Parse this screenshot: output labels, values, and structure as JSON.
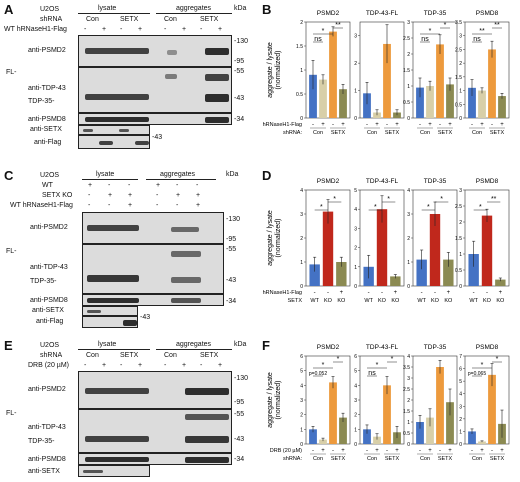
{
  "figure": {
    "panels": {
      "A": {
        "letter": "A",
        "cell_line": "U2OS",
        "group_lysate": "lysate",
        "group_aggregates": "aggregates",
        "kda": "kDa",
        "shrna_label": "shRNA",
        "shrna_values": [
          "Con",
          "SETX",
          "Con",
          "SETX"
        ],
        "treatment_label": "WT hRNaseH1-Flag",
        "treatment_signs": [
          "-",
          "+",
          "-",
          "+",
          "-",
          "+",
          "-",
          "+"
        ],
        "blot_labels": [
          "anti-PSMD2",
          "FL-",
          "anti-TDP-43",
          "TDP-35-",
          "anti-PSMD8",
          "anti-SETX",
          "anti-Flag"
        ],
        "markers": [
          "-130",
          "-95",
          "-55",
          "-43",
          "-34",
          "-43"
        ]
      },
      "C": {
        "letter": "C",
        "cell_line": "U2OS",
        "group_lysate": "lysate",
        "group_aggregates": "aggregates",
        "kda": "kDa",
        "row_wt": "WT",
        "row_setx": "SETX KO",
        "row_flag": "WT hRNaseH1-Flag",
        "wt_signs": [
          "+",
          "-",
          "-",
          "+",
          "-",
          "-"
        ],
        "setx_signs": [
          "-",
          "+",
          "+",
          "-",
          "+",
          "+"
        ],
        "flag_signs": [
          "-",
          "-",
          "+",
          "-",
          "-",
          "+"
        ],
        "blot_labels": [
          "anti-PSMD2",
          "FL-",
          "anti-TDP-43",
          "TDP-35-",
          "anti-PSMD8",
          "anti-SETX",
          "anti-Flag"
        ],
        "markers": [
          "-130",
          "-95",
          "-55",
          "-43",
          "-34",
          "-43"
        ]
      },
      "E": {
        "letter": "E",
        "cell_line": "U2OS",
        "group_lysate": "lysate",
        "group_aggregates": "aggregates",
        "kda": "kDa",
        "shrna_label": "shRNA",
        "shrna_values": [
          "Con",
          "SETX",
          "Con",
          "SETX"
        ],
        "treatment_label": "DRB (20 µM)",
        "treatment_signs": [
          "-",
          "+",
          "-",
          "+",
          "-",
          "+",
          "-",
          "+"
        ],
        "blot_labels": [
          "anti-PSMD2",
          "FL-",
          "anti-TDP-43",
          "TDP-35-",
          "anti-PSMD8",
          "anti-SETX"
        ],
        "markers": [
          "-130",
          "-95",
          "-55",
          "-43",
          "-34"
        ]
      },
      "B": {
        "letter": "B",
        "ylabel": "aggregate / lysate",
        "ylabel2": "(normalized)",
        "x_row1_label": "hRNaseH1-Flag",
        "x_row2_label": "shRNA:",
        "signs": [
          "-",
          "+",
          "-",
          "+"
        ],
        "groups": [
          "Con",
          "SETX"
        ]
      },
      "D": {
        "letter": "D",
        "ylabel": "aggregate / lysate",
        "ylabel2": "(normalized)",
        "x_row1_label": "hRNaseH1-Flag",
        "x_row2_label": "SETX",
        "signs": [
          "-",
          "-",
          "+"
        ],
        "groups": [
          "WT",
          "KO",
          "KO"
        ]
      },
      "F": {
        "letter": "F",
        "ylabel": "aggregate / lysate",
        "ylabel2": "(normalized)",
        "x_row1_label": "DRB (20 µM)",
        "x_row2_label": "shRNA:",
        "signs": [
          "-",
          "+",
          "-",
          "+"
        ],
        "groups": [
          "Con",
          "SETX"
        ]
      }
    }
  },
  "chart_data": [
    {
      "panel": "B",
      "type": "bar",
      "title": "PSMD2",
      "categories": [
        "Con -",
        "Con +",
        "SETX -",
        "SETX +"
      ],
      "values": [
        0.9,
        0.8,
        1.8,
        0.6
      ],
      "errors": [
        0.3,
        0.1,
        0.1,
        0.1
      ],
      "ylim": [
        0,
        2
      ],
      "yticks": [
        0,
        0.5,
        1,
        1.5,
        2
      ],
      "colors": [
        "#4472c4",
        "#d8cfa8",
        "#ed9a3d",
        "#8b8a52"
      ],
      "annotations": [
        {
          "text": "ns",
          "from": 0,
          "to": 1
        },
        {
          "text": "*",
          "from": 0,
          "to": 2
        },
        {
          "text": "**",
          "from": 2,
          "to": 3
        }
      ]
    },
    {
      "panel": "B",
      "type": "bar",
      "title": "TDP-43-FL",
      "categories": [
        "Con -",
        "Con +",
        "SETX -",
        "SETX +"
      ],
      "values": [
        0.9,
        0.2,
        2.7,
        0.2
      ],
      "errors": [
        0.4,
        0.1,
        0.7,
        0.1
      ],
      "ylim": [
        0,
        3.5
      ],
      "yticks": [
        0,
        1,
        2,
        3
      ],
      "colors": [
        "#4472c4",
        "#d8cfa8",
        "#ed9a3d",
        "#8b8a52"
      ],
      "annotations": []
    },
    {
      "panel": "B",
      "type": "bar",
      "title": "TDP-35",
      "categories": [
        "Con -",
        "Con +",
        "SETX -",
        "SETX +"
      ],
      "values": [
        0.95,
        1.0,
        2.3,
        1.05
      ],
      "errors": [
        0.3,
        0.15,
        0.3,
        0.2
      ],
      "ylim": [
        0,
        3
      ],
      "yticks": [
        0,
        0.5,
        1,
        1.5,
        2,
        2.5,
        3
      ],
      "colors": [
        "#4472c4",
        "#d8cfa8",
        "#ed9a3d",
        "#8b8a52"
      ],
      "annotations": [
        {
          "text": "ns",
          "from": 0,
          "to": 1
        },
        {
          "text": "*",
          "from": 0,
          "to": 2
        },
        {
          "text": "*",
          "from": 2,
          "to": 3
        }
      ]
    },
    {
      "panel": "B",
      "type": "bar",
      "title": "PSMD8",
      "categories": [
        "Con -",
        "Con +",
        "SETX -",
        "SETX +"
      ],
      "values": [
        1.1,
        1.0,
        2.5,
        0.8
      ],
      "errors": [
        0.3,
        0.1,
        0.3,
        0.1
      ],
      "ylim": [
        0,
        3.5
      ],
      "yticks": [
        0,
        0.5,
        1,
        1.5,
        2,
        2.5,
        3,
        3.5
      ],
      "colors": [
        "#4472c4",
        "#d8cfa8",
        "#ed9a3d",
        "#8b8a52"
      ],
      "annotations": [
        {
          "text": "ns",
          "from": 0,
          "to": 1
        },
        {
          "text": "**",
          "from": 0,
          "to": 2
        },
        {
          "text": "**",
          "from": 2,
          "to": 3
        }
      ]
    },
    {
      "panel": "D",
      "type": "bar",
      "title": "PSMD2",
      "categories": [
        "WT",
        "KO",
        "KO +"
      ],
      "values": [
        0.9,
        3.1,
        1.0
      ],
      "errors": [
        0.3,
        0.5,
        0.2
      ],
      "ylim": [
        0,
        4
      ],
      "yticks": [
        0,
        1,
        2,
        3,
        4
      ],
      "colors": [
        "#4472c4",
        "#c0281c",
        "#8b8a52"
      ],
      "annotations": [
        {
          "text": "*",
          "from": 0,
          "to": 1
        },
        {
          "text": "*",
          "from": 1,
          "to": 2
        }
      ]
    },
    {
      "panel": "D",
      "type": "bar",
      "title": "TDP-43-FL",
      "categories": [
        "WT",
        "KO",
        "KO +"
      ],
      "values": [
        1.0,
        4.0,
        0.5
      ],
      "errors": [
        0.6,
        0.7,
        0.1
      ],
      "ylim": [
        0,
        5
      ],
      "yticks": [
        0,
        1,
        2,
        3,
        4,
        5
      ],
      "colors": [
        "#4472c4",
        "#c0281c",
        "#8b8a52"
      ],
      "annotations": [
        {
          "text": "*",
          "from": 0,
          "to": 1
        },
        {
          "text": "*",
          "from": 1,
          "to": 2
        }
      ]
    },
    {
      "panel": "D",
      "type": "bar",
      "title": "TDP-35",
      "categories": [
        "WT",
        "KO",
        "KO +"
      ],
      "values": [
        1.1,
        3.0,
        1.1
      ],
      "errors": [
        0.4,
        0.5,
        0.3
      ],
      "ylim": [
        0,
        4
      ],
      "yticks": [
        0,
        1,
        2,
        3,
        4
      ],
      "colors": [
        "#4472c4",
        "#c0281c",
        "#8b8a52"
      ],
      "annotations": [
        {
          "text": "*",
          "from": 0,
          "to": 1
        },
        {
          "text": "*",
          "from": 1,
          "to": 2
        }
      ]
    },
    {
      "panel": "D",
      "type": "bar",
      "title": "PSMD8",
      "categories": [
        "WT",
        "KO",
        "KO +"
      ],
      "values": [
        1.0,
        2.2,
        0.2
      ],
      "errors": [
        0.4,
        0.2,
        0.05
      ],
      "ylim": [
        0,
        3
      ],
      "yticks": [
        0,
        0.5,
        1,
        1.5,
        2,
        2.5,
        3
      ],
      "colors": [
        "#4472c4",
        "#c0281c",
        "#8b8a52"
      ],
      "annotations": [
        {
          "text": "*",
          "from": 0,
          "to": 1
        },
        {
          "text": "**",
          "from": 1,
          "to": 2
        }
      ]
    },
    {
      "panel": "F",
      "type": "bar",
      "title": "PSMD2",
      "categories": [
        "Con -",
        "Con +",
        "SETX -",
        "SETX +"
      ],
      "values": [
        1.0,
        0.3,
        4.2,
        1.8
      ],
      "errors": [
        0.2,
        0.1,
        0.4,
        0.3
      ],
      "ylim": [
        0,
        6
      ],
      "yticks": [
        0,
        1,
        2,
        3,
        4,
        5,
        6
      ],
      "colors": [
        "#4472c4",
        "#d8cfa8",
        "#ed9a3d",
        "#8b8a52"
      ],
      "annotations": [
        {
          "text": "p=0.052",
          "from": 0,
          "to": 1
        },
        {
          "text": "*",
          "from": 0,
          "to": 2
        },
        {
          "text": "*",
          "from": 2,
          "to": 3
        }
      ]
    },
    {
      "panel": "F",
      "type": "bar",
      "title": "TDP-43-FL",
      "categories": [
        "Con -",
        "Con +",
        "SETX -",
        "SETX +"
      ],
      "values": [
        1.0,
        0.5,
        4.0,
        0.8
      ],
      "errors": [
        0.3,
        0.2,
        0.6,
        0.4
      ],
      "ylim": [
        0,
        6
      ],
      "yticks": [
        0,
        1,
        2,
        3,
        4,
        5,
        6
      ],
      "colors": [
        "#4472c4",
        "#d8cfa8",
        "#ed9a3d",
        "#8b8a52"
      ],
      "annotations": [
        {
          "text": "ns",
          "from": 0,
          "to": 1
        },
        {
          "text": "*",
          "from": 0,
          "to": 2
        },
        {
          "text": "*",
          "from": 2,
          "to": 3
        }
      ]
    },
    {
      "panel": "F",
      "type": "bar",
      "title": "TDP-35",
      "categories": [
        "Con -",
        "Con +",
        "SETX -",
        "SETX +"
      ],
      "values": [
        1.0,
        1.2,
        3.5,
        1.9
      ],
      "errors": [
        0.3,
        0.4,
        0.3,
        0.6
      ],
      "ylim": [
        0,
        4
      ],
      "yticks": [
        0,
        0.5,
        1,
        1.5,
        2,
        2.5,
        3,
        3.5,
        4
      ],
      "colors": [
        "#4472c4",
        "#d8cfa8",
        "#ed9a3d",
        "#8b8a52"
      ],
      "annotations": []
    },
    {
      "panel": "F",
      "type": "bar",
      "title": "PSMD8",
      "categories": [
        "Con -",
        "Con +",
        "SETX -",
        "SETX +"
      ],
      "values": [
        1.0,
        0.2,
        5.5,
        1.6
      ],
      "errors": [
        0.2,
        0.05,
        0.9,
        1.1
      ],
      "ylim": [
        0,
        7
      ],
      "yticks": [
        0,
        1,
        2,
        3,
        4,
        5,
        6,
        7
      ],
      "colors": [
        "#4472c4",
        "#d8cfa8",
        "#ed9a3d",
        "#8b8a52"
      ],
      "annotations": [
        {
          "text": "p=0.065",
          "from": 0,
          "to": 1
        },
        {
          "text": "*",
          "from": 0,
          "to": 2
        },
        {
          "text": "*",
          "from": 2,
          "to": 3
        }
      ]
    }
  ]
}
